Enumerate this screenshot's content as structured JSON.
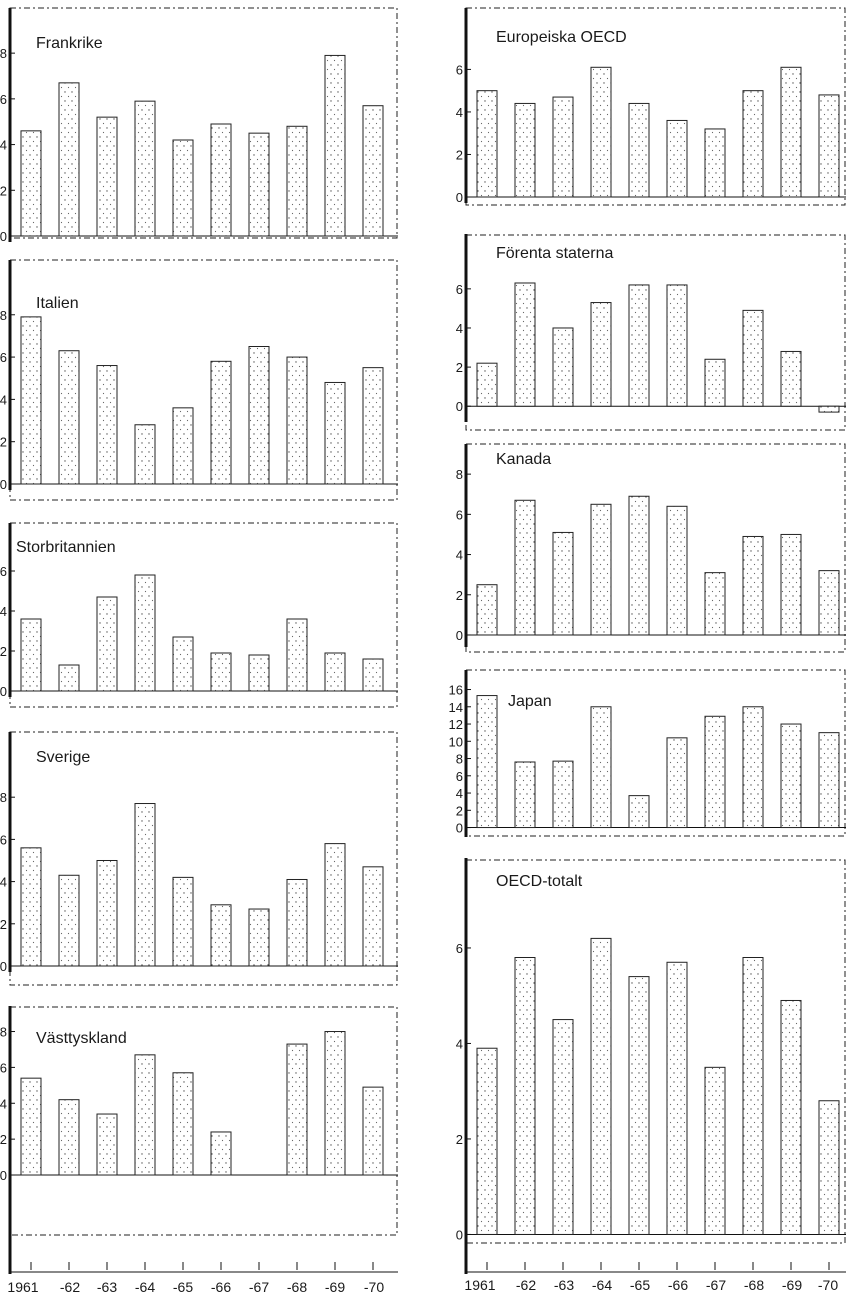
{
  "chart_data": [
    {
      "type": "bar",
      "title": "Frankrike",
      "categories": [
        "1961",
        "-62",
        "-63",
        "-64",
        "-65",
        "-66",
        "-67",
        "-68",
        "-69",
        "-70"
      ],
      "values": [
        4.6,
        6.7,
        5.2,
        5.9,
        4.2,
        4.9,
        4.5,
        4.8,
        7.9,
        5.7
      ],
      "yticks": [
        "0",
        "2",
        "4",
        "6",
        "8"
      ],
      "ylim": [
        0,
        9.8
      ]
    },
    {
      "type": "bar",
      "title": "Italien",
      "categories": [
        "1961",
        "-62",
        "-63",
        "-64",
        "-65",
        "-66",
        "-67",
        "-68",
        "-69",
        "-70"
      ],
      "values": [
        7.9,
        6.3,
        5.6,
        2.8,
        3.6,
        5.8,
        6.5,
        6.0,
        4.8,
        5.5
      ],
      "yticks": [
        "0",
        "2",
        "4",
        "6",
        "8"
      ],
      "ylim": [
        0,
        10.4
      ]
    },
    {
      "type": "bar",
      "title": "Storbritannien",
      "categories": [
        "1961",
        "-62",
        "-63",
        "-64",
        "-65",
        "-66",
        "-67",
        "-68",
        "-69",
        "-70"
      ],
      "values": [
        3.6,
        1.3,
        4.7,
        5.8,
        2.7,
        1.9,
        1.8,
        3.6,
        1.9,
        1.6
      ],
      "yticks": [
        "0",
        "2",
        "4",
        "6"
      ],
      "ylim": [
        0,
        8.2
      ]
    },
    {
      "type": "bar",
      "title": "Sverige",
      "categories": [
        "1961",
        "-62",
        "-63",
        "-64",
        "-65",
        "-66",
        "-67",
        "-68",
        "-69",
        "-70"
      ],
      "values": [
        5.6,
        4.3,
        5.0,
        7.7,
        4.2,
        2.9,
        2.7,
        4.1,
        5.8,
        4.7
      ],
      "yticks": [
        "0",
        "2",
        "4",
        "6",
        "8"
      ],
      "ylim": [
        0,
        10.9
      ]
    },
    {
      "type": "bar",
      "title": "Västtyskland",
      "categories": [
        "1961",
        "-62",
        "-63",
        "-64",
        "-65",
        "-66",
        "-67",
        "-68",
        "-69",
        "-70"
      ],
      "values": [
        5.4,
        4.2,
        3.4,
        6.7,
        5.7,
        2.4,
        0.0,
        7.3,
        8.0,
        4.9
      ],
      "yticks": [
        "0",
        "2",
        "4",
        "6",
        "8"
      ],
      "ylim": [
        -3.4,
        9.2
      ]
    },
    {
      "type": "bar",
      "title": "Europeiska  OECD",
      "categories": [
        "1961",
        "-62",
        "-63",
        "-64",
        "-65",
        "-66",
        "-67",
        "-68",
        "-69",
        "-70"
      ],
      "values": [
        5.0,
        4.4,
        4.7,
        6.1,
        4.4,
        3.6,
        3.2,
        5.0,
        6.1,
        4.8
      ],
      "yticks": [
        "0",
        "2",
        "4",
        "6"
      ],
      "ylim": [
        0,
        8.7
      ]
    },
    {
      "type": "bar",
      "title": "Förenta staterna",
      "categories": [
        "1961",
        "-62",
        "-63",
        "-64",
        "-65",
        "-66",
        "-67",
        "-68",
        "-69",
        "-70"
      ],
      "values": [
        2.2,
        6.3,
        4.0,
        5.3,
        6.2,
        6.2,
        2.4,
        4.9,
        2.8,
        -0.3
      ],
      "yticks": [
        "0",
        "2",
        "4",
        "6"
      ],
      "ylim": [
        -0.5,
        8.6
      ]
    },
    {
      "type": "bar",
      "title": "Kanada",
      "categories": [
        "1961",
        "-62",
        "-63",
        "-64",
        "-65",
        "-66",
        "-67",
        "-68",
        "-69",
        "-70"
      ],
      "values": [
        2.5,
        6.7,
        5.1,
        6.5,
        6.9,
        6.4,
        3.1,
        4.9,
        5.0,
        3.2
      ],
      "yticks": [
        "0",
        "2",
        "4",
        "6",
        "8"
      ],
      "ylim": [
        -0.3,
        9.3
      ]
    },
    {
      "type": "bar",
      "title": "Japan",
      "categories": [
        "1961",
        "-62",
        "-63",
        "-64",
        "-65",
        "-66",
        "-67",
        "-68",
        "-69",
        "-70"
      ],
      "values": [
        15.3,
        7.6,
        7.7,
        14.0,
        3.7,
        10.4,
        12.9,
        14.0,
        12.0,
        11.0
      ],
      "yticks": [
        "0",
        "2",
        "4",
        "6",
        "8",
        "10",
        "12",
        "14",
        "16"
      ],
      "ylim": [
        -0.4,
        17.8
      ]
    },
    {
      "type": "bar",
      "title": "OECD-totalt",
      "categories": [
        "1961",
        "-62",
        "-63",
        "-64",
        "-65",
        "-66",
        "-67",
        "-68",
        "-69",
        "-70"
      ],
      "values": [
        3.9,
        5.8,
        4.5,
        6.2,
        5.4,
        5.7,
        3.5,
        5.8,
        4.9,
        2.8
      ],
      "yticks": [
        "0",
        "2",
        "4",
        "6"
      ],
      "ylim": [
        -0.2,
        7.8
      ]
    }
  ],
  "x_axis_left": {
    "labels": [
      "1961",
      "-62",
      "-63",
      "-64",
      "-65",
      "-66",
      "-67",
      "-68",
      "-69",
      "-70"
    ]
  },
  "x_axis_right": {
    "labels": [
      "1961",
      "-62",
      "-63",
      "-64",
      "-65",
      "-66",
      "-67",
      "-68",
      "-69",
      "-70"
    ]
  }
}
